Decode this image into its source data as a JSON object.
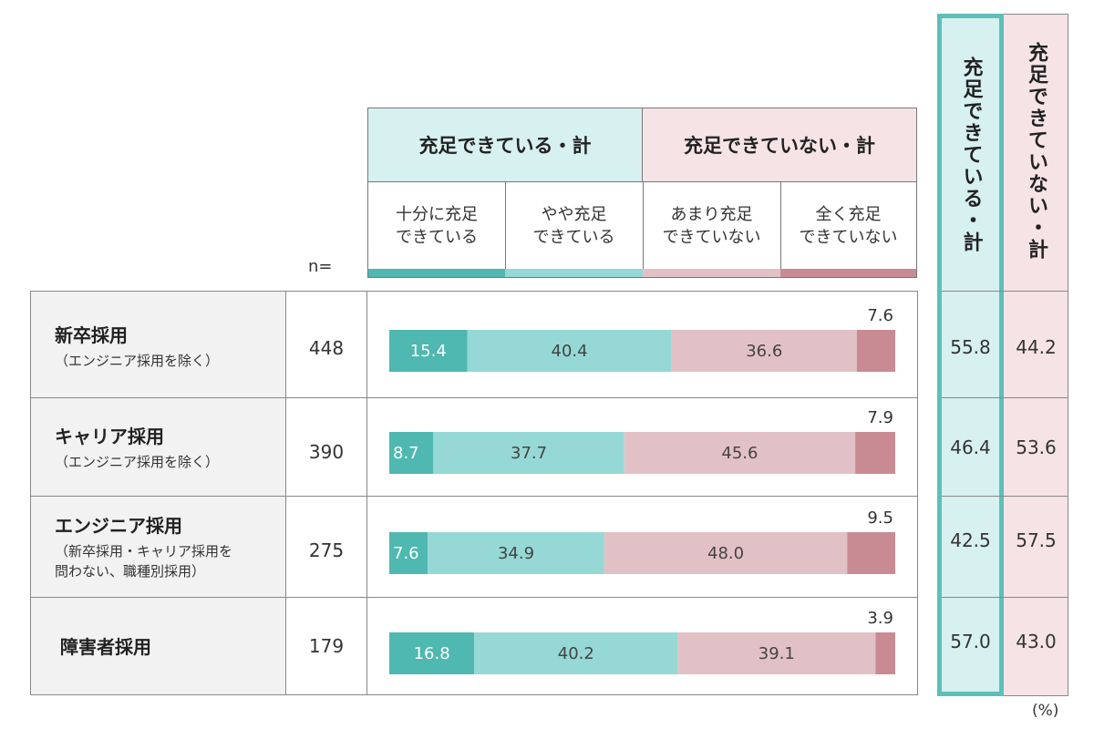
{
  "header": {
    "satisfied_total": "充足できている・計",
    "unsatisfied_total": "充足できていない・計",
    "sub": [
      {
        "label": "十分に充足\nできている",
        "color": "#4fb8b0"
      },
      {
        "label": "やや充足\nできている",
        "color": "#95d8d5"
      },
      {
        "label": "あまり充足\nできていない",
        "color": "#e2c1c6"
      },
      {
        "label": "全く充足\nできていない",
        "color": "#c98b93"
      }
    ],
    "n_label": "n="
  },
  "summary_headers": {
    "satisfied": "充足できている・計",
    "unsatisfied": "充足できていない・計"
  },
  "unit": "(%)",
  "colors": {
    "fully": "#4fb8b0",
    "somewhat": "#95d8d5",
    "not_much": "#e2c1c6",
    "not_at_all": "#c98b93",
    "sat_col_bg": "#d7f0f0",
    "sat_col_border": "#5dbfb8",
    "unsat_col_bg": "#f5e3e6",
    "row_label_bg": "#f2f2f2"
  },
  "rows": [
    {
      "label": "新卒採用",
      "sublabel": "（エンジニア採用を除く）",
      "n": "448",
      "sat_total": "55.8",
      "unsat_total": "44.2"
    },
    {
      "label": "キャリア採用",
      "sublabel": "（エンジニア採用を除く）",
      "n": "390",
      "sat_total": "46.4",
      "unsat_total": "53.6"
    },
    {
      "label": "エンジニア採用",
      "sublabel": "（新卒採用・キャリア採用を\n問わない、職種別採用）",
      "n": "275",
      "sat_total": "42.5",
      "unsat_total": "57.5"
    },
    {
      "label": "障害者採用",
      "sublabel": "",
      "n": "179",
      "sat_total": "57.0",
      "unsat_total": "43.0"
    }
  ],
  "chart_data": {
    "type": "bar",
    "orientation": "horizontal",
    "stacked": true,
    "title": "",
    "xlabel": "",
    "ylabel": "",
    "categories": [
      "新卒採用",
      "キャリア採用",
      "エンジニア採用",
      "障害者採用"
    ],
    "series": [
      {
        "name": "十分に充足できている",
        "values": [
          15.4,
          8.7,
          7.6,
          16.8
        ]
      },
      {
        "name": "やや充足できている",
        "values": [
          40.4,
          37.7,
          34.9,
          40.2
        ]
      },
      {
        "name": "あまり充足できていない",
        "values": [
          36.6,
          45.6,
          48.0,
          39.1
        ]
      },
      {
        "name": "全く充足できていない",
        "values": [
          7.6,
          7.9,
          9.5,
          3.9
        ]
      }
    ],
    "xlim": [
      0,
      100
    ]
  }
}
